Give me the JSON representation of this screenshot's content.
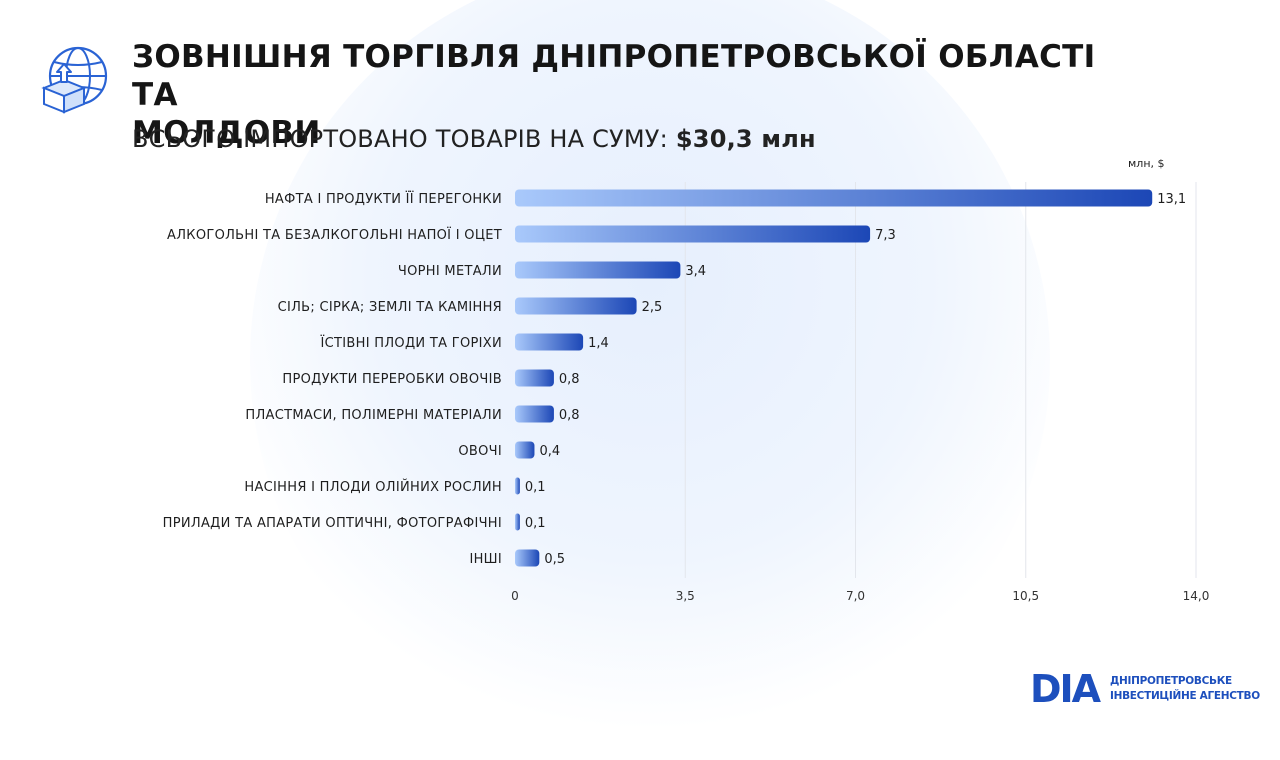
{
  "header": {
    "title_line1": "ЗОВНІШНЯ ТОРГІВЛЯ ДНІПРОПЕТРОВСЬКОЇ ОБЛАСТІ ТА",
    "title_line2": "МОЛДОВИ",
    "subtitle_label": "ВСЬОГО ІМПОРТОВАНО ТОВАРІВ НА СУМУ:",
    "subtitle_value": "$30,3 млн",
    "icon": "globe-box-upload-icon"
  },
  "colors": {
    "bar_start": "#a9c9fb",
    "bar_end": "#1c47b6",
    "grid": "#e3e6ec",
    "brand": "#1d4fbd"
  },
  "chart_data": {
    "type": "bar",
    "orientation": "horizontal",
    "unit_label": "млн, $",
    "categories": [
      "НАФТА І ПРОДУКТИ ЇЇ ПЕРЕГОНКИ",
      "АЛКОГОЛЬНІ ТА БЕЗАЛКОГОЛЬНІ НАПОЇ І ОЦЕТ",
      "ЧОРНІ МЕТАЛИ",
      "СІЛЬ; СІРКА; ЗЕМЛІ ТА КАМІННЯ",
      "ЇСТІВНІ ПЛОДИ ТА ГОРІХИ",
      "ПРОДУКТИ ПЕРЕРОБКИ ОВОЧІВ",
      "ПЛАСТМАСИ, ПОЛІМЕРНІ МАТЕРІАЛИ",
      "ОВОЧІ",
      "НАСІННЯ І ПЛОДИ ОЛІЙНИХ РОСЛИН",
      "ПРИЛАДИ ТА АПАРАТИ ОПТИЧНІ, ФОТОГРАФІЧНІ",
      "ІНШІ"
    ],
    "values": [
      13.1,
      7.3,
      3.4,
      2.5,
      1.4,
      0.8,
      0.8,
      0.4,
      0.1,
      0.1,
      0.5
    ],
    "value_labels": [
      "13,1",
      "7,3",
      "3,4",
      "2,5",
      "1,4",
      "0,8",
      "0,8",
      "0,4",
      "0,1",
      "0,1",
      "0,5"
    ],
    "xlim": [
      0,
      14.0
    ],
    "xticks": [
      0,
      3.5,
      7.0,
      10.5,
      14.0
    ],
    "xtick_labels": [
      "0",
      "3,5",
      "7,0",
      "10,5",
      "14,0"
    ],
    "grid": true
  },
  "logo": {
    "mark": "DIA",
    "line1": "ДНІПРОПЕТРОВСЬКЕ",
    "line2": "ІНВЕСТИЦІЙНЕ АГЕНСТВО"
  }
}
